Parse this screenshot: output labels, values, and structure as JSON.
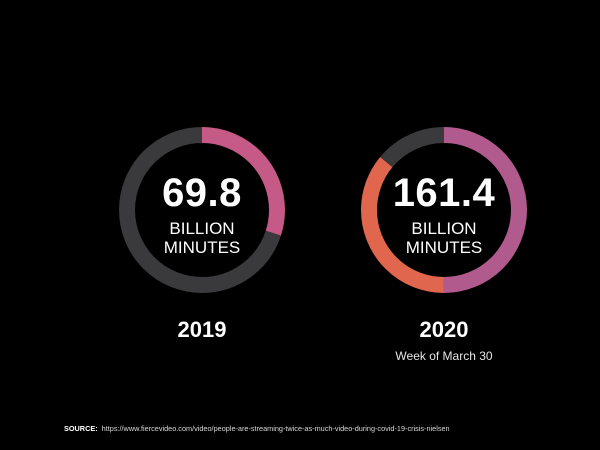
{
  "colors": {
    "background": "#000000",
    "track": "#3a3a3c",
    "pink": "#c45a85",
    "magenta": "#a85a8e",
    "orange": "#e0674e",
    "text": "#ffffff"
  },
  "chart_data": [
    {
      "type": "pie",
      "style": "donut",
      "year": "2019",
      "value_text": "69.8",
      "unit_text": "BILLION\nMINUTES",
      "subtitle": "",
      "value": 69.8,
      "segments": [
        {
          "fraction": 0.3,
          "color": "#c45a85"
        },
        {
          "fraction": 0.7,
          "color": "#3a3a3c"
        }
      ]
    },
    {
      "type": "pie",
      "style": "donut",
      "year": "2020",
      "value_text": "161.4",
      "unit_text": "BILLION\nMINUTES",
      "subtitle": "Week of March 30",
      "value": 161.4,
      "segments": [
        {
          "fraction": 0.5,
          "color": "#b05a8d"
        },
        {
          "fraction": 0.36,
          "color": "#e0674e"
        },
        {
          "fraction": 0.14,
          "color": "#3a3a3c"
        }
      ]
    }
  ],
  "source": {
    "label": "SOURCE:",
    "url": "https://www.fiercevideo.com/video/people-are-streaming-twice-as-much-video-during-covid-19-crisis-nielsen"
  }
}
